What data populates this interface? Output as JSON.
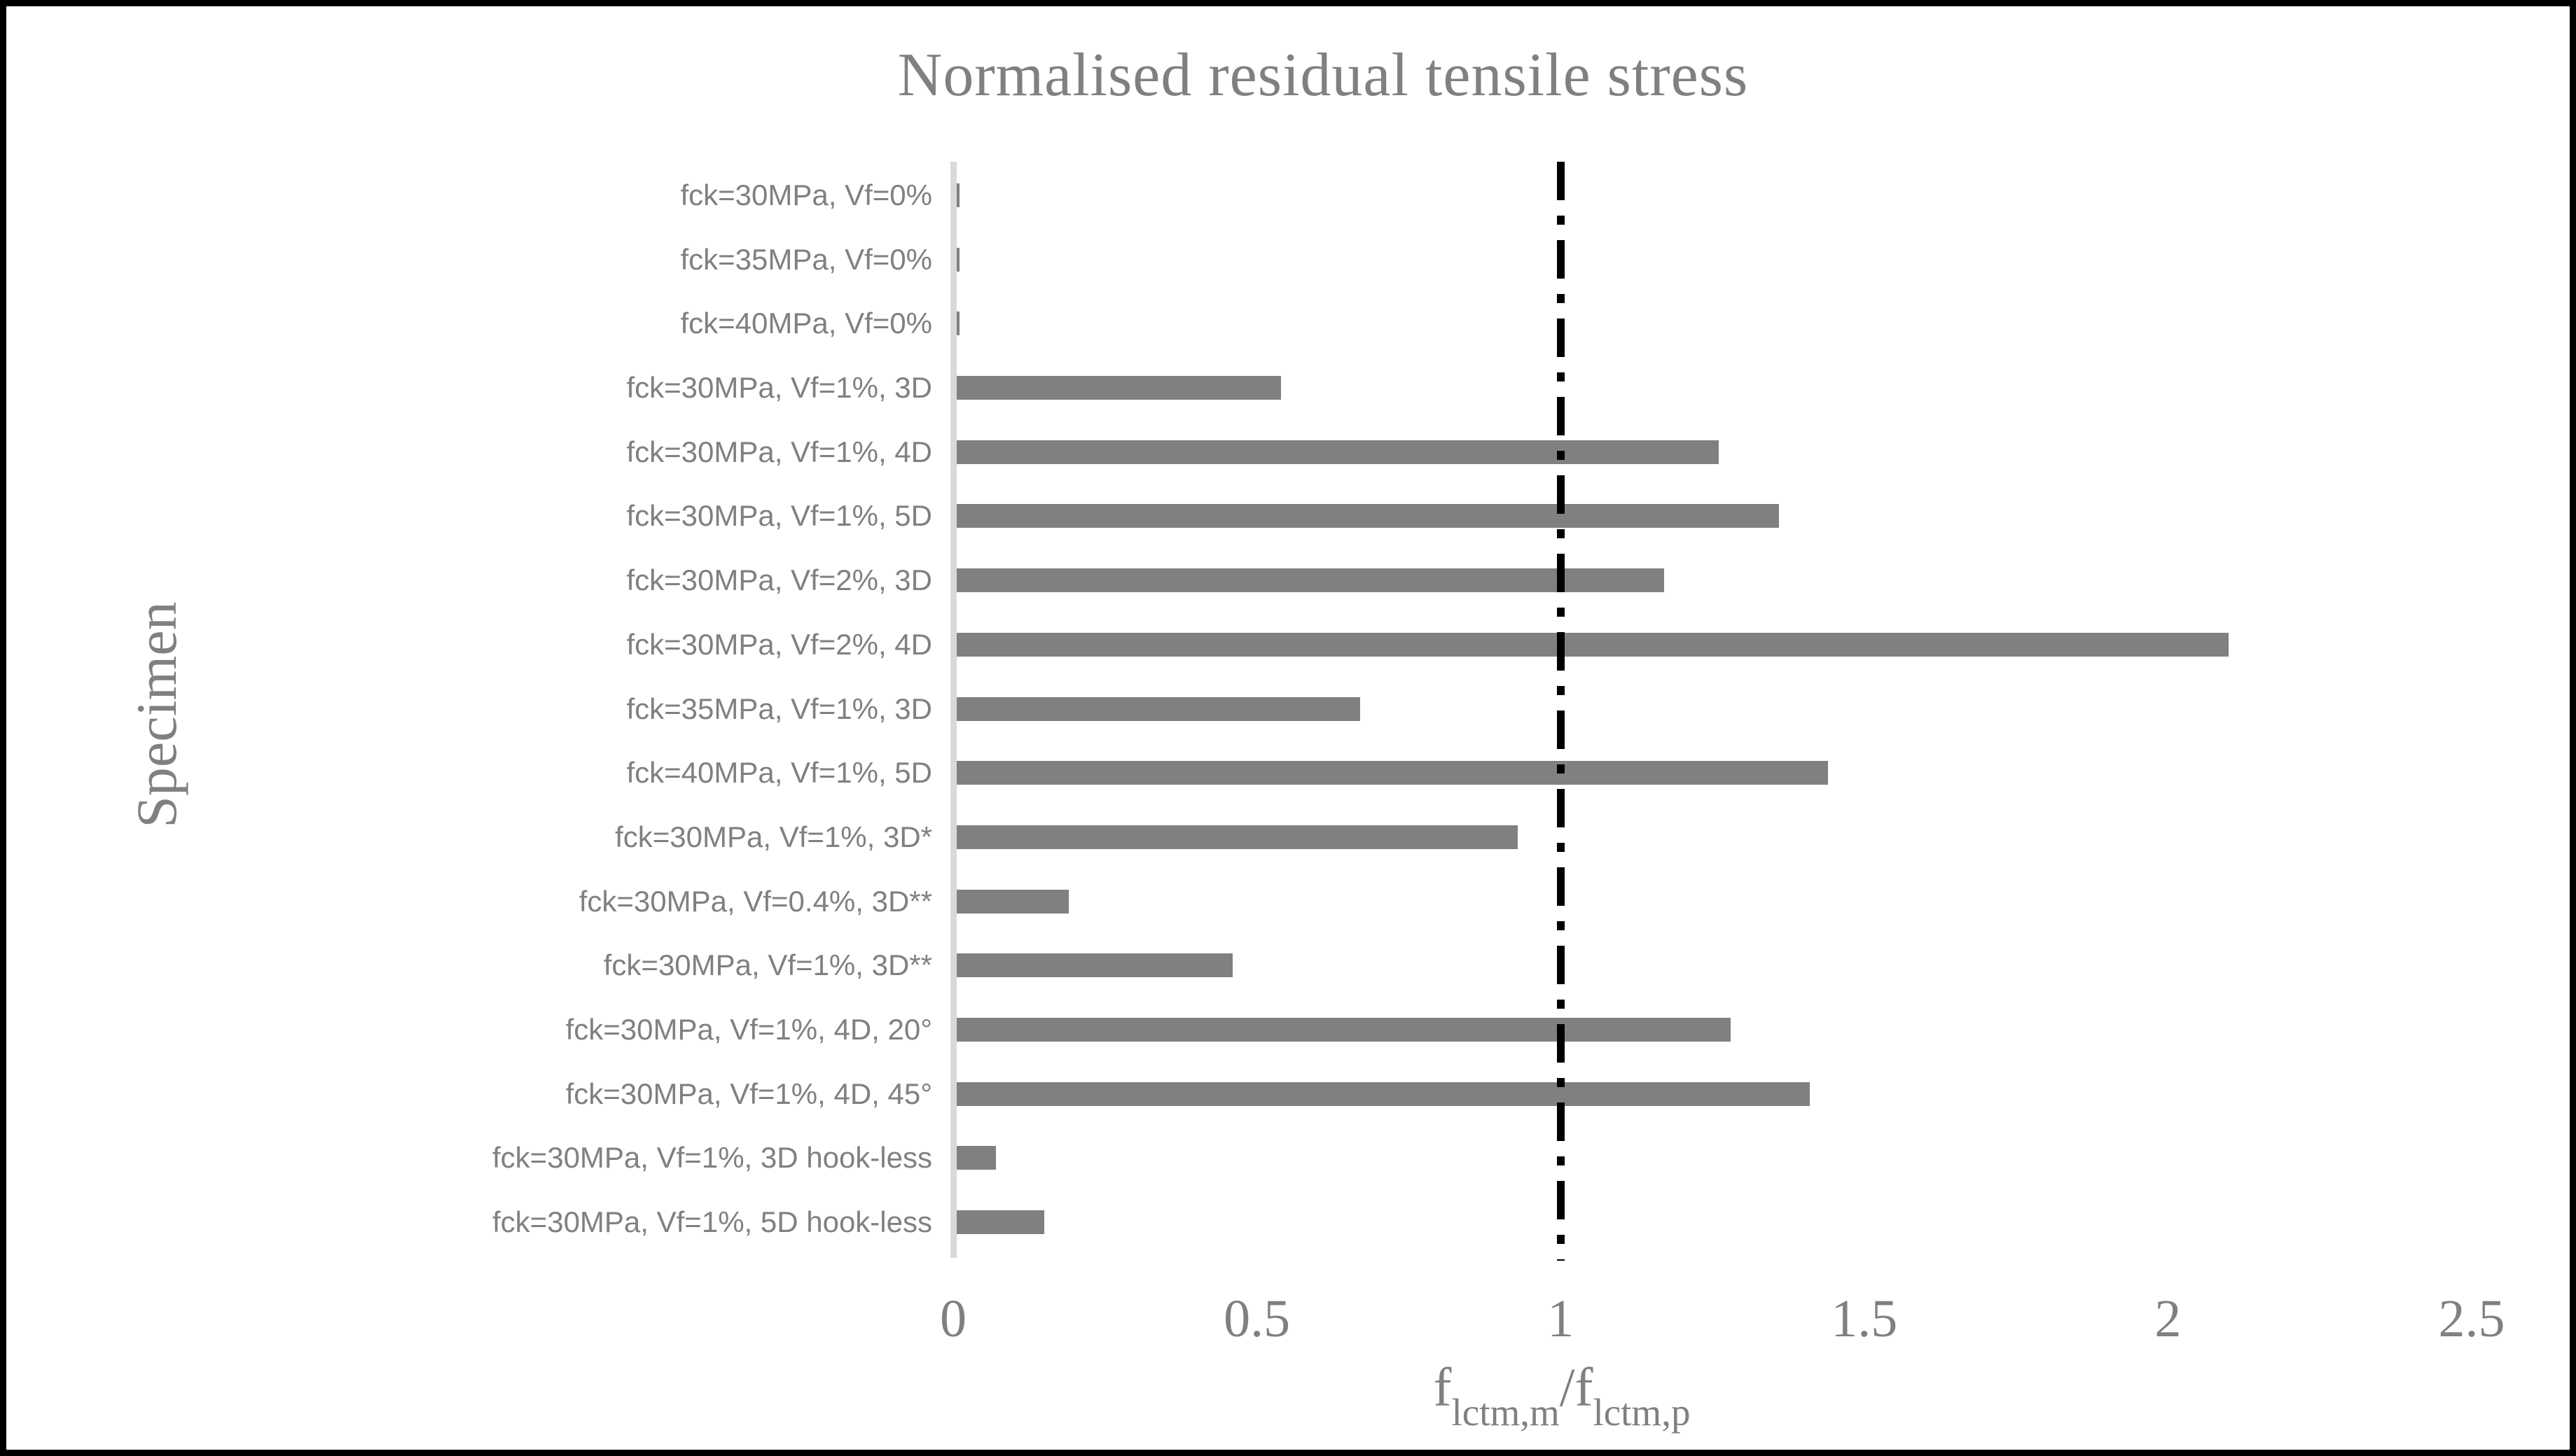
{
  "chart_data": {
    "type": "bar",
    "orientation": "horizontal",
    "title": "Normalised residual tensile stress",
    "ylabel": "Specimen",
    "xlabel": "f_lctm,m / f_lctm,p",
    "xlabel_parts": {
      "base1": "f",
      "sub1": "lctm,m",
      "separator": "/",
      "base2": "f",
      "sub2": "lctm,p"
    },
    "categories": [
      "fck=30MPa, Vf=0%",
      "fck=35MPa, Vf=0%",
      "fck=40MPa, Vf=0%",
      "fck=30MPa, Vf=1%, 3D",
      "fck=30MPa, Vf=1%, 4D",
      "fck=30MPa, Vf=1%, 5D",
      "fck=30MPa, Vf=2%, 3D",
      "fck=30MPa, Vf=2%, 4D",
      "fck=35MPa, Vf=1%, 3D",
      "fck=40MPa, Vf=1%, 5D",
      "fck=30MPa, Vf=1%, 3D*",
      "fck=30MPa, Vf=0.4%, 3D**",
      "fck=30MPa, Vf=1%, 3D**",
      "fck=30MPa, Vf=1%, 4D, 20°",
      "fck=30MPa, Vf=1%, 4D, 45°",
      "fck=30MPa, Vf=1%, 3D hook-less",
      "fck=30MPa, Vf=1%, 5D hook-less"
    ],
    "values": [
      0.01,
      0.01,
      0.01,
      0.54,
      1.26,
      1.36,
      1.17,
      2.1,
      0.67,
      1.44,
      0.93,
      0.19,
      0.46,
      1.28,
      1.41,
      0.07,
      0.15
    ],
    "xlim": [
      0,
      2.5
    ],
    "xticks": [
      0,
      0.5,
      1,
      1.5,
      2,
      2.5
    ],
    "xtick_labels": [
      "0",
      "0.5",
      "1",
      "1.5",
      "2",
      "2.5"
    ],
    "reference_line_x": 1,
    "grid": false,
    "legend": false,
    "bar_color": "#808080",
    "text_color": "#808080",
    "axis_line_color": "#d9d9d9",
    "reference_line_color": "#000000"
  }
}
